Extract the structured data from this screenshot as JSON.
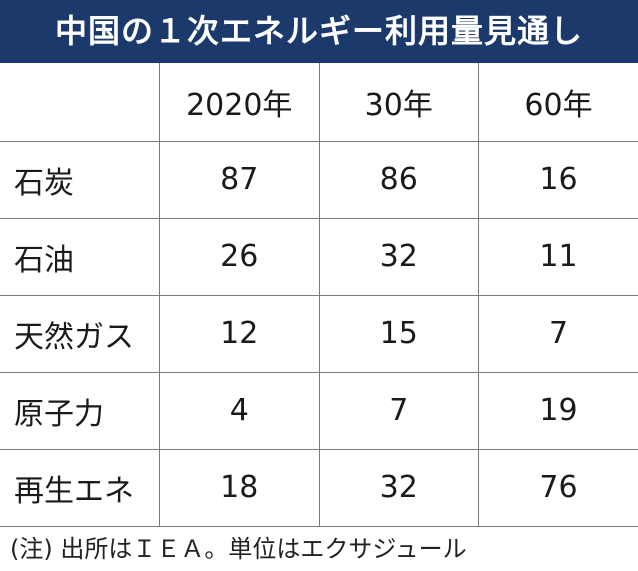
{
  "chart_data": {
    "type": "table",
    "title": "中国の１次エネルギー利用量見通し",
    "columns": [
      "",
      "2020年",
      "30年",
      "60年"
    ],
    "rows": [
      {
        "label": "石炭",
        "values": [
          "87",
          "86",
          "16"
        ]
      },
      {
        "label": "石油",
        "values": [
          "26",
          "32",
          "11"
        ]
      },
      {
        "label": "天然ガス",
        "values": [
          "12",
          "15",
          "7"
        ]
      },
      {
        "label": "原子力",
        "values": [
          "4",
          "7",
          "19"
        ]
      },
      {
        "label": "再生エネ",
        "values": [
          "18",
          "32",
          "76"
        ]
      }
    ],
    "note": "(注) 出所はＩＥＡ。単位はエクサジュール"
  },
  "colors": {
    "title_background": "#1b3a6b",
    "title_text": "#ffffff",
    "grid": "#7a7a7a"
  }
}
